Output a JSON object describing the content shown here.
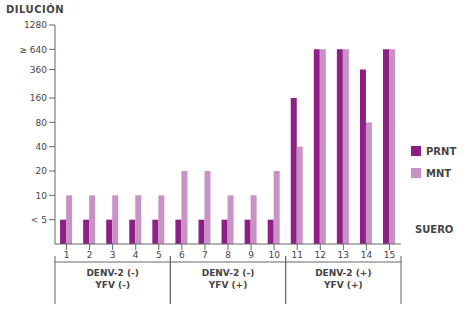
{
  "chart_data": {
    "type": "bar",
    "y_label": "DILUCIÓN",
    "x_label": "SUERO",
    "categories": [
      "1",
      "2",
      "3",
      "4",
      "5",
      "6",
      "7",
      "8",
      "9",
      "10",
      "11",
      "12",
      "13",
      "14",
      "15"
    ],
    "series": [
      {
        "name": "PRNT",
        "color": "#8e1f84",
        "values": [
          5,
          5,
          5,
          5,
          5,
          5,
          5,
          5,
          5,
          5,
          160,
          640,
          640,
          360,
          640
        ]
      },
      {
        "name": "MNT",
        "color": "#c892c6",
        "values": [
          10,
          10,
          10,
          10,
          10,
          20,
          20,
          10,
          10,
          20,
          40,
          640,
          640,
          80,
          640
        ]
      }
    ],
    "log": "y",
    "ylim": [
      2.5,
      1280
    ],
    "yticks": [
      {
        "value": 5,
        "label": "< 5"
      },
      10,
      20,
      40,
      80,
      160,
      360,
      {
        "value": 640,
        "label": "≥ 640"
      },
      1280
    ],
    "grid": false,
    "legend": "right",
    "groups": [
      {
        "name": [
          "DENV-2 (-)",
          "YFV (-)"
        ],
        "categories": [
          "1",
          "2",
          "3",
          "4",
          "5"
        ]
      },
      {
        "name": [
          "DENV-2 (-)",
          "YFV (+)"
        ],
        "categories": [
          "6",
          "7",
          "8",
          "9",
          "10"
        ]
      },
      {
        "name": [
          "DENV-2 (+)",
          "YFV (+)"
        ],
        "categories": [
          "11",
          "12",
          "13",
          "14",
          "15"
        ]
      }
    ]
  }
}
